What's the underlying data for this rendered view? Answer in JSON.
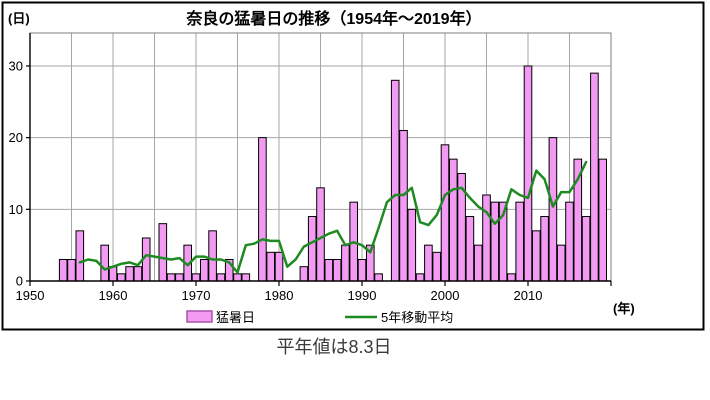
{
  "title": "奈良の猛暑日の推移（1954年〜2019年）",
  "y_unit_label": "(日)",
  "x_unit_label": "(年)",
  "caption": "平年値は8.3日",
  "legend": {
    "bars": "猛暑日",
    "line": "5年移動平均"
  },
  "colors": {
    "bar_fill": "#F39BF3",
    "bar_stroke": "#000000",
    "ma_line": "#1E8B22",
    "grid": "#A6A6A6",
    "axis": "#000000",
    "plot_border": "#7F7F7F",
    "chart_box_border": "#000000",
    "background": "#FFFFFF"
  },
  "chart_data": {
    "type": "bar",
    "title": "奈良の猛暑日の推移（1954年〜2019年）",
    "xlabel": "(年)",
    "ylabel": "(日)",
    "xlim": [
      1950,
      2020
    ],
    "ylim": [
      0,
      34.6
    ],
    "x_ticks": [
      1950,
      1960,
      1970,
      1980,
      1990,
      2000,
      2010
    ],
    "y_ticks": [
      0,
      10,
      20,
      30
    ],
    "grid": true,
    "gridline_interval_years": 5,
    "legend_position": "bottom",
    "years": [
      1954,
      1955,
      1956,
      1957,
      1958,
      1959,
      1960,
      1961,
      1962,
      1963,
      1964,
      1965,
      1966,
      1967,
      1968,
      1969,
      1970,
      1971,
      1972,
      1973,
      1974,
      1975,
      1976,
      1977,
      1978,
      1979,
      1980,
      1981,
      1982,
      1983,
      1984,
      1985,
      1986,
      1987,
      1988,
      1989,
      1990,
      1991,
      1992,
      1993,
      1994,
      1995,
      1996,
      1997,
      1998,
      1999,
      2000,
      2001,
      2002,
      2003,
      2004,
      2005,
      2006,
      2007,
      2008,
      2009,
      2010,
      2011,
      2012,
      2013,
      2014,
      2015,
      2016,
      2017,
      2018,
      2019
    ],
    "series": [
      {
        "name": "猛暑日",
        "type": "bar",
        "values": [
          3,
          3,
          7,
          0,
          0,
          5,
          2,
          1,
          2,
          2,
          6,
          0,
          8,
          1,
          1,
          5,
          1,
          3,
          7,
          1,
          3,
          1,
          1,
          0,
          20,
          4,
          4,
          0,
          0,
          2,
          9,
          13,
          3,
          3,
          5,
          11,
          3,
          5,
          1,
          0,
          28,
          21,
          10,
          1,
          5,
          4,
          19,
          17,
          15,
          9,
          5,
          12,
          11,
          11,
          1,
          11,
          30,
          7,
          9,
          20,
          5,
          11,
          17,
          9,
          29,
          17
        ]
      },
      {
        "name": "5年移動平均",
        "type": "line",
        "derivation": "centered 5-year moving average of 猛暑日",
        "start_year": 1956,
        "end_year": 2017,
        "values": [
          2.6,
          3.0,
          2.8,
          1.6,
          2.0,
          2.4,
          2.6,
          2.2,
          3.6,
          3.4,
          3.2,
          3.0,
          3.2,
          2.2,
          3.4,
          3.4,
          3.0,
          3.0,
          2.6,
          1.2,
          5.0,
          5.2,
          5.8,
          5.6,
          5.6,
          2.0,
          3.0,
          4.8,
          5.4,
          6.0,
          6.6,
          7.0,
          5.0,
          5.4,
          5.0,
          4.0,
          7.4,
          11.0,
          12.0,
          12.0,
          13.0,
          8.2,
          7.8,
          9.2,
          12.0,
          12.8,
          13.0,
          11.6,
          10.4,
          9.6,
          8.0,
          9.2,
          12.8,
          12.0,
          11.6,
          15.4,
          14.2,
          10.4,
          12.4,
          12.4,
          14.2,
          16.6
        ]
      }
    ]
  }
}
